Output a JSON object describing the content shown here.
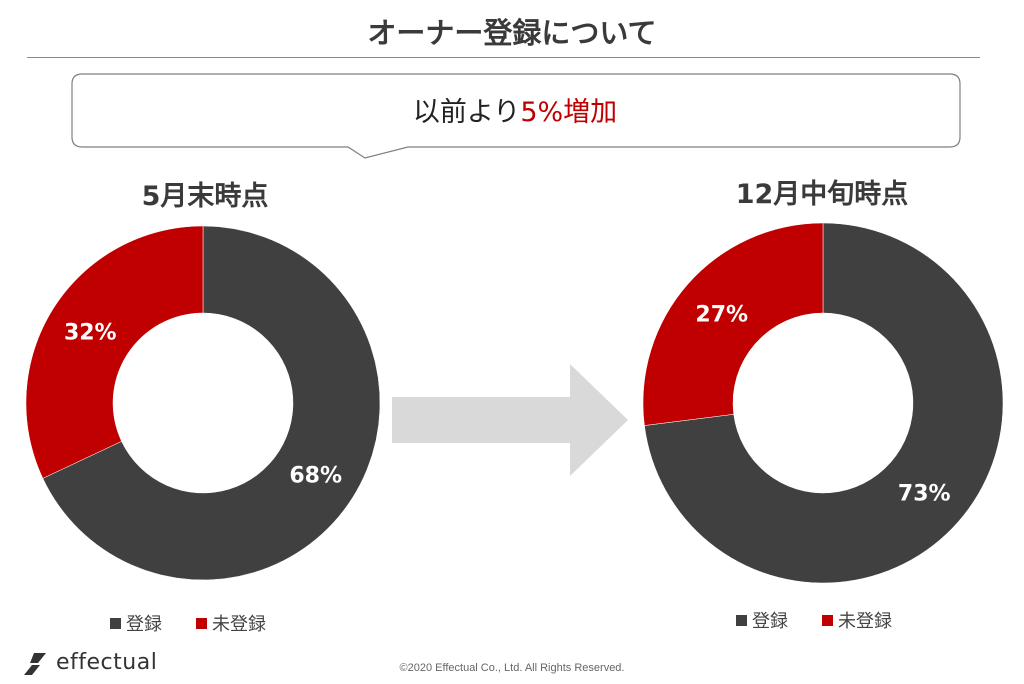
{
  "page": {
    "title": "オーナー登録について",
    "callout": {
      "prefix": "以前より",
      "highlight": "5%増加"
    },
    "copyright": "©2020 Effectual Co., Ltd. All Rights Reserved.",
    "logo_text": "effectual"
  },
  "colors": {
    "registered": "#404040",
    "unregistered": "#c00000",
    "arrow": "#d9d9d9",
    "highlight": "#c00000"
  },
  "chart_data": [
    {
      "type": "pie",
      "title": "5月末時点",
      "series": [
        {
          "name": "登録",
          "value": 68,
          "label": "68%"
        },
        {
          "name": "未登録",
          "value": 32,
          "label": "32%"
        }
      ],
      "legend": [
        "登録",
        "未登録"
      ],
      "legend_position": "bottom"
    },
    {
      "type": "pie",
      "title": "12月中旬時点",
      "series": [
        {
          "name": "登録",
          "value": 73,
          "label": "73%"
        },
        {
          "name": "未登録",
          "value": 27,
          "label": "27%"
        }
      ],
      "legend": [
        "登録",
        "未登録"
      ],
      "legend_position": "bottom"
    }
  ]
}
